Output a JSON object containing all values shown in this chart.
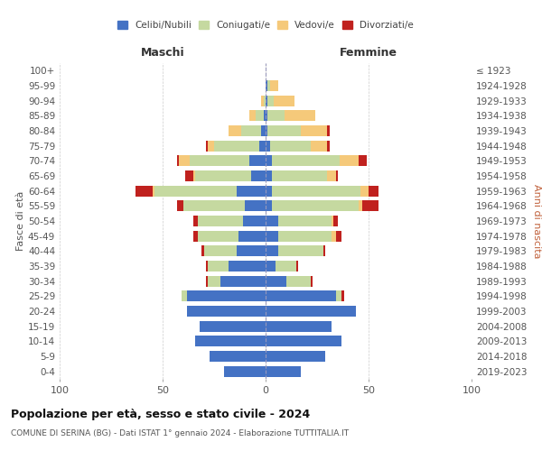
{
  "age_groups": [
    "100+",
    "95-99",
    "90-94",
    "85-89",
    "80-84",
    "75-79",
    "70-74",
    "65-69",
    "60-64",
    "55-59",
    "50-54",
    "45-49",
    "40-44",
    "35-39",
    "30-34",
    "25-29",
    "20-24",
    "15-19",
    "10-14",
    "5-9",
    "0-4"
  ],
  "birth_years": [
    "≤ 1923",
    "1924-1928",
    "1929-1933",
    "1934-1938",
    "1939-1943",
    "1944-1948",
    "1949-1953",
    "1954-1958",
    "1959-1963",
    "1964-1968",
    "1969-1973",
    "1974-1978",
    "1979-1983",
    "1984-1988",
    "1989-1993",
    "1994-1998",
    "1999-2003",
    "2004-2008",
    "2009-2013",
    "2014-2018",
    "2019-2023"
  ],
  "colors": {
    "celibi": "#4472c4",
    "coniugati": "#c5d9a0",
    "vedovi": "#f5c97a",
    "divorziati": "#c0211e"
  },
  "male": {
    "celibi": [
      0,
      0,
      0,
      1,
      2,
      3,
      8,
      7,
      14,
      10,
      11,
      13,
      14,
      18,
      22,
      38,
      38,
      32,
      34,
      27,
      20
    ],
    "coniugati": [
      0,
      0,
      1,
      4,
      10,
      22,
      29,
      27,
      40,
      30,
      22,
      20,
      16,
      10,
      6,
      3,
      0,
      0,
      0,
      0,
      0
    ],
    "vedovi": [
      0,
      0,
      1,
      3,
      6,
      3,
      5,
      1,
      1,
      0,
      0,
      0,
      0,
      0,
      0,
      0,
      0,
      0,
      0,
      0,
      0
    ],
    "divorziati": [
      0,
      0,
      0,
      0,
      0,
      1,
      1,
      4,
      8,
      3,
      2,
      2,
      1,
      1,
      1,
      0,
      0,
      0,
      0,
      0,
      0
    ]
  },
  "female": {
    "celibi": [
      0,
      1,
      1,
      1,
      1,
      2,
      3,
      3,
      3,
      3,
      6,
      6,
      6,
      5,
      10,
      34,
      44,
      32,
      37,
      29,
      17
    ],
    "coniugati": [
      0,
      1,
      3,
      8,
      16,
      20,
      33,
      27,
      43,
      42,
      26,
      26,
      22,
      10,
      12,
      3,
      0,
      0,
      0,
      0,
      0
    ],
    "vedovi": [
      0,
      4,
      10,
      15,
      13,
      8,
      9,
      4,
      4,
      2,
      1,
      2,
      0,
      0,
      0,
      0,
      0,
      0,
      0,
      0,
      0
    ],
    "divorziati": [
      0,
      0,
      0,
      0,
      1,
      1,
      4,
      1,
      5,
      8,
      2,
      3,
      1,
      1,
      1,
      1,
      0,
      0,
      0,
      0,
      0
    ]
  },
  "title": "Popolazione per età, sesso e stato civile - 2024",
  "subtitle": "COMUNE DI SERINA (BG) - Dati ISTAT 1° gennaio 2024 - Elaborazione TUTTITALIA.IT",
  "xlabel_left": "Maschi",
  "xlabel_right": "Femmine",
  "ylabel_left": "Fasce di età",
  "ylabel_right": "Anni di nascita",
  "legend_labels": [
    "Celibi/Nubili",
    "Coniugati/e",
    "Vedovi/e",
    "Divorziati/e"
  ],
  "xlim": 100,
  "bg_color": "#ffffff",
  "grid_color": "#cccccc"
}
